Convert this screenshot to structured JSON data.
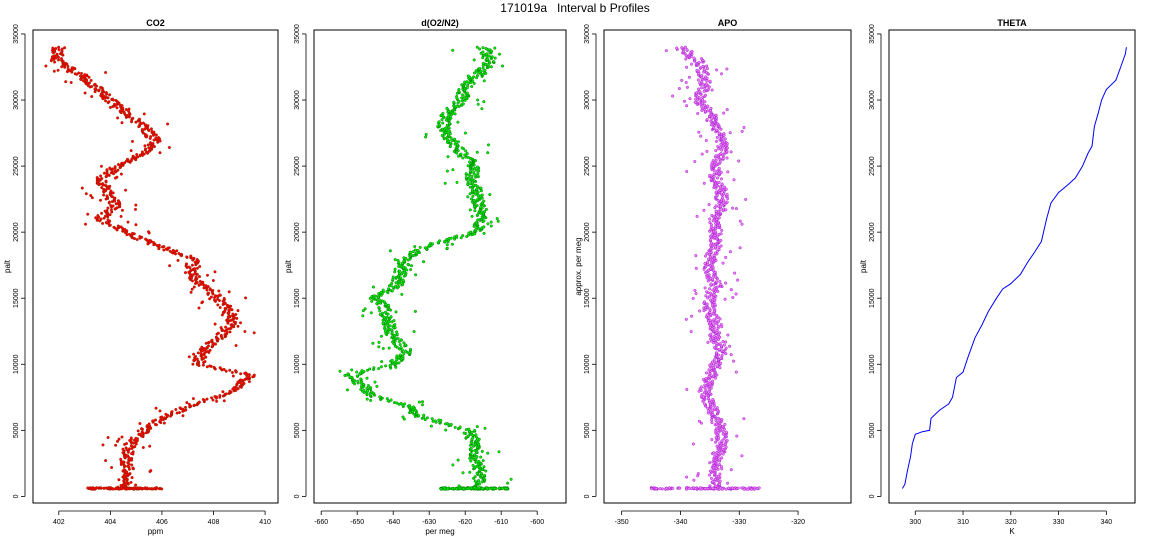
{
  "title": "171019a   Interval b Profiles",
  "colors": {
    "axis": "#000000"
  },
  "chart_data": [
    {
      "type": "scatter",
      "title": "CO2",
      "xlabel": "ppm",
      "ylabel": "palt",
      "xlim": [
        401,
        410.5
      ],
      "ylim": [
        -500,
        35300
      ],
      "xticks": [
        402,
        404,
        406,
        408,
        410
      ],
      "yticks": [
        0,
        5000,
        10000,
        15000,
        20000,
        25000,
        30000,
        35000
      ],
      "grid": false,
      "color": "#ff0000",
      "outline_color": "#8b2500",
      "series": [
        {
          "profile": [
            [
              402.0,
              34000
            ],
            [
              401.9,
              33000
            ],
            [
              402.8,
              32000
            ],
            [
              403.4,
              31000
            ],
            [
              404.0,
              30000
            ],
            [
              404.6,
              29000
            ],
            [
              405.3,
              28000
            ],
            [
              405.7,
              27000
            ],
            [
              405.3,
              26000
            ],
            [
              404.3,
              25000
            ],
            [
              403.6,
              24000
            ],
            [
              403.9,
              23000
            ],
            [
              404.2,
              22000
            ],
            [
              403.6,
              21000
            ],
            [
              404.8,
              19800
            ],
            [
              405.8,
              19000
            ],
            [
              407.2,
              18000
            ],
            [
              407.1,
              17000
            ],
            [
              407.5,
              16000
            ],
            [
              408.2,
              15000
            ],
            [
              408.6,
              14000
            ],
            [
              408.8,
              13000
            ],
            [
              408.2,
              12000
            ],
            [
              407.6,
              11000
            ],
            [
              407.4,
              10000
            ],
            [
              409.4,
              9200
            ],
            [
              409.0,
              8300
            ],
            [
              408.1,
              7500
            ],
            [
              407.0,
              6800
            ],
            [
              406.1,
              6000
            ],
            [
              405.3,
              5000
            ],
            [
              404.8,
              4000
            ],
            [
              404.6,
              3000
            ],
            [
              404.7,
              2000
            ],
            [
              404.6,
              1000
            ],
            [
              404.3,
              600
            ]
          ],
          "base": {
            "y": 600,
            "x_from": 403.1,
            "x_to": 406.0
          }
        }
      ]
    },
    {
      "type": "scatter",
      "title": "d(O2/N2)",
      "xlabel": "per meg",
      "ylabel": "palt",
      "xlim": [
        -662,
        -592
      ],
      "ylim": [
        -500,
        35300
      ],
      "xticks": [
        -660,
        -650,
        -640,
        -630,
        -620,
        -610,
        -600
      ],
      "yticks": [
        0,
        5000,
        10000,
        15000,
        20000,
        25000,
        30000,
        35000
      ],
      "grid": false,
      "color": "#00ee00",
      "outline_color": "#006400",
      "series": [
        {
          "profile": [
            [
              -615,
              34000
            ],
            [
              -613,
              33000
            ],
            [
              -616,
              32000
            ],
            [
              -620,
              31000
            ],
            [
              -621,
              30000
            ],
            [
              -625,
              29000
            ],
            [
              -626,
              28000
            ],
            [
              -624,
              27000
            ],
            [
              -621,
              26000
            ],
            [
              -618,
              25000
            ],
            [
              -618,
              24000
            ],
            [
              -617,
              23000
            ],
            [
              -616,
              22000
            ],
            [
              -615,
              21000
            ],
            [
              -617,
              20000
            ],
            [
              -630,
              19000
            ],
            [
              -637,
              18000
            ],
            [
              -638,
              17000
            ],
            [
              -639,
              16000
            ],
            [
              -645,
              15000
            ],
            [
              -642,
              14000
            ],
            [
              -641,
              13000
            ],
            [
              -640,
              12000
            ],
            [
              -636,
              11000
            ],
            [
              -640,
              10000
            ],
            [
              -652,
              9200
            ],
            [
              -649,
              8500
            ],
            [
              -645,
              7500
            ],
            [
              -637,
              7000
            ],
            [
              -632,
              6000
            ],
            [
              -625,
              5500
            ],
            [
              -619,
              5000
            ],
            [
              -617,
              4000
            ],
            [
              -617,
              3000
            ],
            [
              -616,
              2000
            ],
            [
              -616,
              1000
            ],
            [
              -620,
              600
            ]
          ],
          "base": {
            "y": 600,
            "x_from": -627,
            "x_to": -608
          }
        }
      ]
    },
    {
      "type": "scatter",
      "title": "APO",
      "xlabel": "",
      "ylabel": "approx. per meg",
      "xlim": [
        -353,
        -311
      ],
      "ylim": [
        -500,
        35300
      ],
      "xticks": [
        -350,
        -340,
        -330,
        -320
      ],
      "yticks": [
        0,
        5000,
        10000,
        15000,
        20000,
        25000,
        30000,
        35000
      ],
      "grid": false,
      "color": "#ee82ee",
      "outline_color": "#9400d3",
      "series": [
        {
          "profile": [
            [
              -340,
              34000
            ],
            [
              -337,
              33000
            ],
            [
              -336,
              32000
            ],
            [
              -336,
              31000
            ],
            [
              -337,
              30000
            ],
            [
              -335,
              29000
            ],
            [
              -334,
              28000
            ],
            [
              -333,
              27000
            ],
            [
              -333,
              26000
            ],
            [
              -334,
              25000
            ],
            [
              -334,
              24000
            ],
            [
              -333,
              23000
            ],
            [
              -333,
              22000
            ],
            [
              -334,
              21000
            ],
            [
              -334,
              20000
            ],
            [
              -334,
              19000
            ],
            [
              -335,
              18000
            ],
            [
              -335,
              17000
            ],
            [
              -334,
              16000
            ],
            [
              -335,
              15000
            ],
            [
              -335,
              14000
            ],
            [
              -334,
              13000
            ],
            [
              -334,
              12000
            ],
            [
              -333,
              11000
            ],
            [
              -334,
              10000
            ],
            [
              -335,
              9000
            ],
            [
              -336,
              8000
            ],
            [
              -335,
              7000
            ],
            [
              -334,
              6000
            ],
            [
              -333,
              5000
            ],
            [
              -333,
              4000
            ],
            [
              -334,
              3000
            ],
            [
              -334,
              2000
            ],
            [
              -334,
              1000
            ],
            [
              -334,
              600
            ]
          ],
          "base": {
            "y": 600,
            "x_from": -345,
            "x_to": -326
          }
        }
      ]
    },
    {
      "type": "line",
      "title": "THETA",
      "xlabel": "K",
      "ylabel": "palt",
      "xlim": [
        294.5,
        346
      ],
      "ylim": [
        -500,
        35300
      ],
      "xticks": [
        300,
        310,
        320,
        330,
        340
      ],
      "yticks": [
        0,
        5000,
        10000,
        15000,
        20000,
        25000,
        30000,
        35000
      ],
      "grid": false,
      "color": "#0000ff",
      "series": [
        {
          "points": [
            [
              297.3,
              600
            ],
            [
              297.8,
              900
            ],
            [
              298.4,
              2000
            ],
            [
              299.0,
              3000
            ],
            [
              299.4,
              4000
            ],
            [
              300.0,
              4700
            ],
            [
              301.5,
              4900
            ],
            [
              303.0,
              5000
            ],
            [
              303.3,
              5900
            ],
            [
              305.0,
              6500
            ],
            [
              307.0,
              7000
            ],
            [
              307.8,
              7500
            ],
            [
              308.6,
              9000
            ],
            [
              310.0,
              9400
            ],
            [
              311.0,
              10500
            ],
            [
              312.5,
              12000
            ],
            [
              314.0,
              13000
            ],
            [
              315.3,
              14000
            ],
            [
              317.0,
              15000
            ],
            [
              318.3,
              15700
            ],
            [
              320.0,
              16100
            ],
            [
              322.0,
              16800
            ],
            [
              323.5,
              17700
            ],
            [
              325.0,
              18500
            ],
            [
              326.4,
              19300
            ],
            [
              327.5,
              21000
            ],
            [
              328.4,
              22200
            ],
            [
              330.0,
              23000
            ],
            [
              332.0,
              23600
            ],
            [
              333.5,
              24100
            ],
            [
              335.0,
              25000
            ],
            [
              336.2,
              26000
            ],
            [
              337.0,
              26500
            ],
            [
              337.5,
              28000
            ],
            [
              338.3,
              29000
            ],
            [
              339.0,
              30000
            ],
            [
              340.0,
              30800
            ],
            [
              342.0,
              31500
            ],
            [
              343.0,
              32500
            ],
            [
              344.0,
              33500
            ],
            [
              344.2,
              34000
            ]
          ]
        }
      ]
    }
  ]
}
